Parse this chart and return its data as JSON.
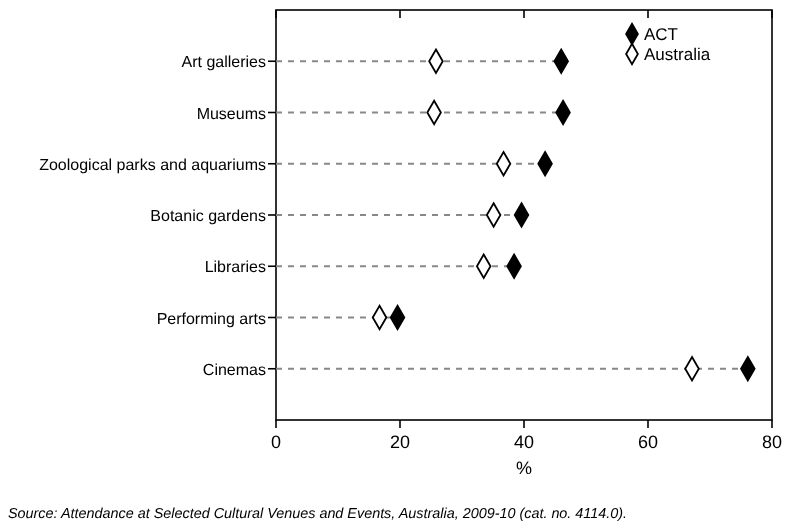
{
  "chart_data": {
    "type": "lollipop",
    "orientation": "horizontal",
    "xlabel": "%",
    "categories": [
      "Art galleries",
      "Museums",
      "Zoological parks and aquariums",
      "Botanic gardens",
      "Libraries",
      "Performing arts",
      "Cinemas"
    ],
    "series": [
      {
        "name": "ACT",
        "color": "#000000",
        "marker": "diamond",
        "values": [
          46.0,
          46.3,
          43.4,
          39.6,
          38.4,
          19.6,
          76.1
        ]
      },
      {
        "name": "Australia",
        "color": "#ffffff",
        "marker": "diamond",
        "values": [
          25.8,
          25.5,
          36.7,
          35.1,
          33.5,
          16.7,
          67.1
        ]
      }
    ],
    "xlim": [
      0,
      80
    ],
    "xticks": [
      0,
      20,
      40,
      60,
      80
    ],
    "line_style": "dashed",
    "legend": "top right",
    "grid": false,
    "annotations": [
      "Source: Attendance at Selected Cultural Venues and Events, Australia, 2009-10 (cat. no. 4114.0)."
    ]
  }
}
